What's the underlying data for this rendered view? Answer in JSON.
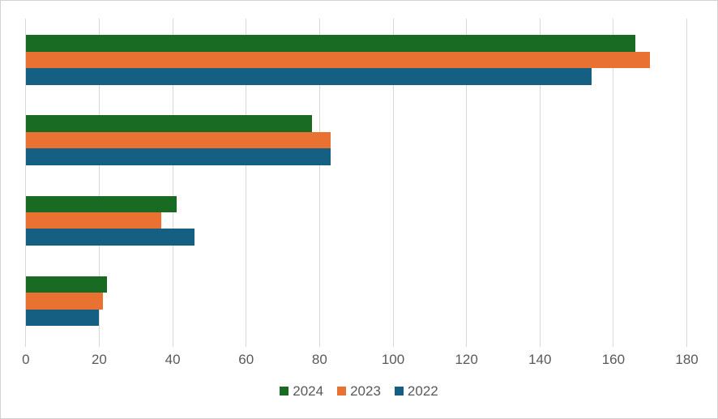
{
  "chart_data": {
    "type": "bar",
    "orientation": "horizontal",
    "title": "",
    "xlabel": "",
    "ylabel": "",
    "groups": 4,
    "categories": [
      "",
      "",
      "",
      ""
    ],
    "series": [
      {
        "name": "2024",
        "color": "#196B24",
        "values": [
          166,
          78,
          41,
          22
        ]
      },
      {
        "name": "2023",
        "color": "#E97132",
        "values": [
          170,
          83,
          37,
          21
        ]
      },
      {
        "name": "2022",
        "color": "#156082",
        "values": [
          154,
          83,
          46,
          20
        ]
      }
    ],
    "xlim": [
      0,
      180
    ],
    "xticks": [
      0,
      20,
      40,
      60,
      80,
      100,
      120,
      140,
      160,
      180
    ],
    "gridlines": "vertical",
    "legend_position": "bottom-center"
  },
  "colors": {
    "background": "#FFFFFF",
    "border": "#D2D2D2",
    "gridline": "#D9D9D9",
    "axis_text": "#595959"
  }
}
